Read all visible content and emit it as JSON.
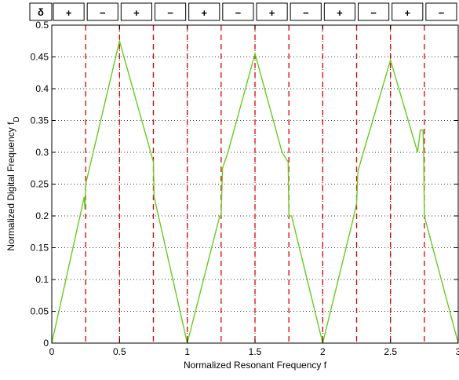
{
  "chart_data": {
    "type": "line",
    "title": "",
    "xlabel": "Normalized Resonant Frequency f",
    "ylabel": "Normalized Digital Frequency  f",
    "ylabel_subscript": "D",
    "xlim": [
      0,
      3
    ],
    "ylim": [
      0,
      0.5
    ],
    "x_ticks": [
      "0",
      "0.5",
      "1",
      "1.5",
      "2",
      "2.5",
      "3"
    ],
    "y_ticks": [
      "0",
      "0.05",
      "0.1",
      "0.15",
      "0.2",
      "0.25",
      "0.3",
      "0.35",
      "0.4",
      "0.45",
      "0.5"
    ],
    "grid": true,
    "sign_row": {
      "label": "δ",
      "signs": [
        "+",
        "−",
        "+",
        "−",
        "+",
        "−",
        "+",
        "−",
        "+",
        "−",
        "+",
        "−"
      ]
    },
    "boundaries_x": [
      0.25,
      0.5,
      0.75,
      1.0,
      1.25,
      1.5,
      1.75,
      2.0,
      2.25,
      2.5,
      2.75
    ],
    "boundary_color": "#e00000",
    "series": [
      {
        "color": "#66cc22",
        "points": [
          [
            0.0,
            0.0
          ],
          [
            0.24,
            0.23
          ],
          [
            0.245,
            0.21
          ],
          [
            0.25,
            0.25
          ],
          [
            0.5,
            0.475
          ],
          [
            0.75,
            0.285
          ],
          [
            0.755,
            0.23
          ],
          [
            1.0,
            0.0
          ],
          [
            1.24,
            0.2
          ],
          [
            1.25,
            0.2
          ],
          [
            1.26,
            0.275
          ],
          [
            1.3,
            0.3
          ],
          [
            1.5,
            0.455
          ],
          [
            1.7,
            0.3
          ],
          [
            1.745,
            0.285
          ],
          [
            1.75,
            0.2
          ],
          [
            1.77,
            0.2
          ],
          [
            2.0,
            0.0
          ],
          [
            2.23,
            0.2
          ],
          [
            2.25,
            0.22
          ],
          [
            2.26,
            0.27
          ],
          [
            2.3,
            0.3
          ],
          [
            2.5,
            0.445
          ],
          [
            2.7,
            0.3
          ],
          [
            2.72,
            0.335
          ],
          [
            2.74,
            0.335
          ],
          [
            2.745,
            0.3
          ],
          [
            2.75,
            0.2
          ],
          [
            3.0,
            0.0
          ]
        ]
      }
    ]
  }
}
